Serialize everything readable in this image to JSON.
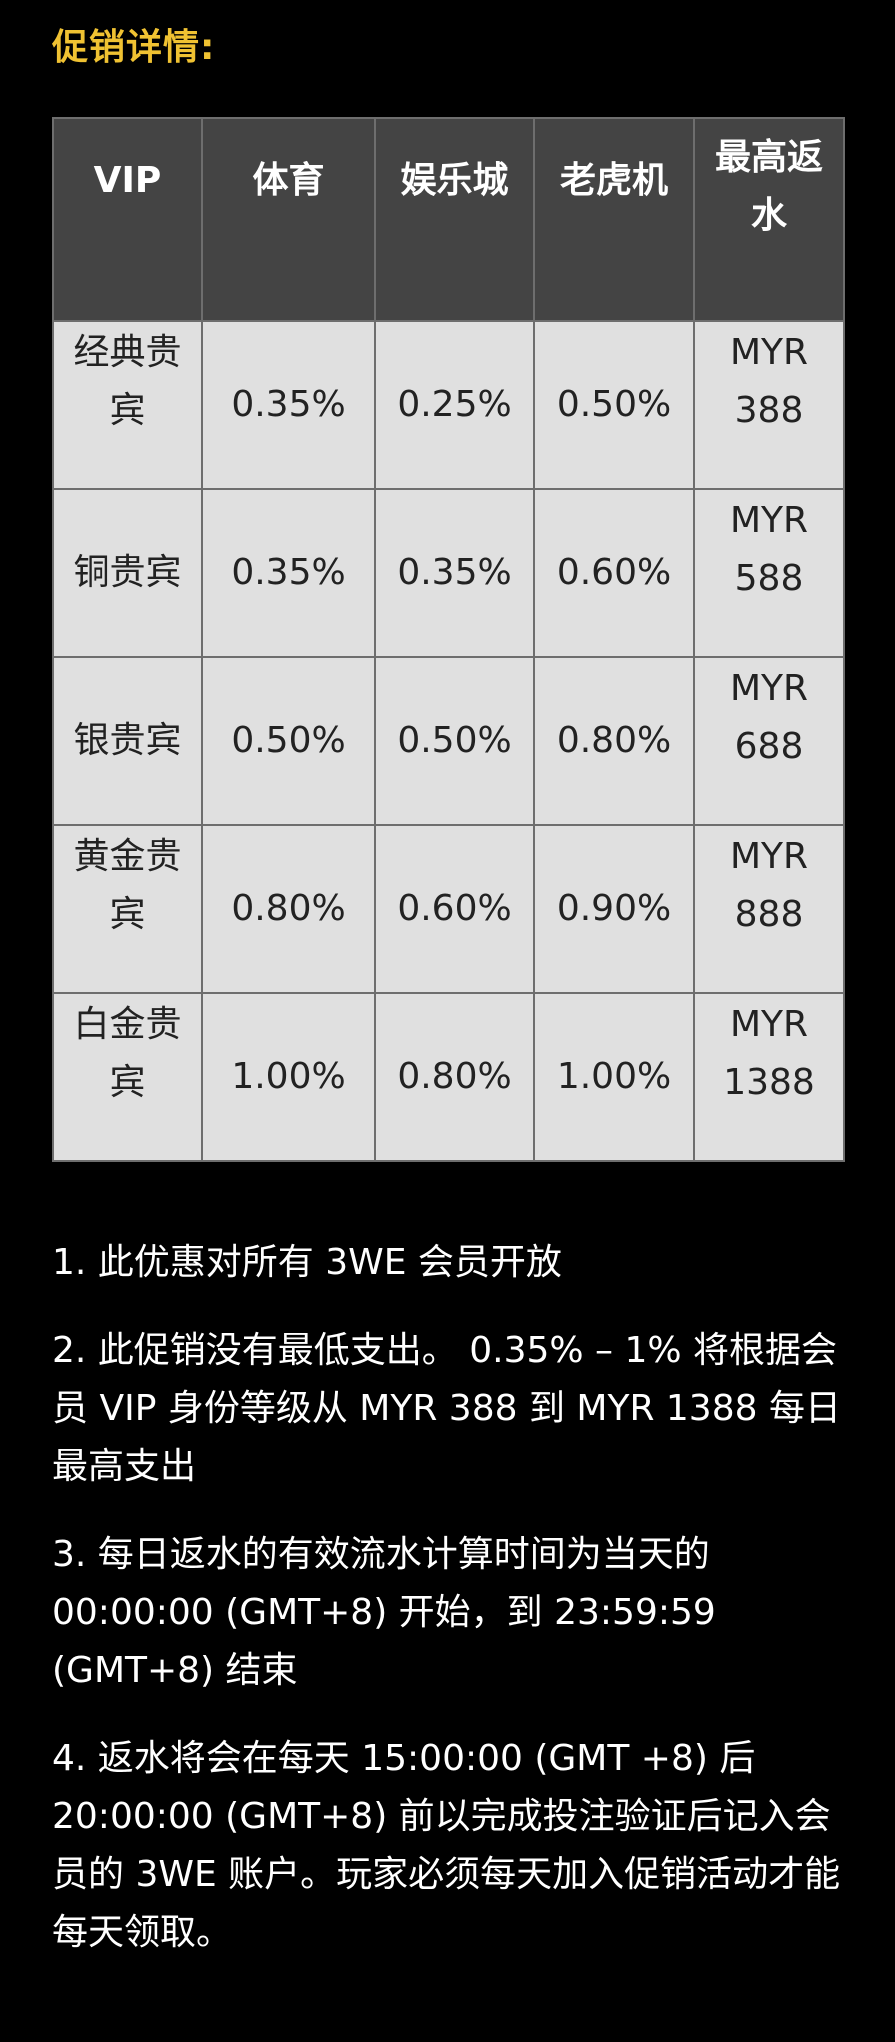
{
  "title": "促销详情:",
  "table": {
    "headers": [
      "VIP",
      "体育",
      "娱乐城",
      "老虎机",
      "最高返水"
    ],
    "rows": [
      [
        "经典贵宾",
        "0.35%",
        "0.25%",
        "0.50%",
        "MYR 388"
      ],
      [
        "铜贵宾",
        "0.35%",
        "0.35%",
        "0.60%",
        "MYR 588"
      ],
      [
        "银贵宾",
        "0.50%",
        "0.50%",
        "0.80%",
        "MYR 688"
      ],
      [
        "黄金贵宾",
        "0.80%",
        "0.60%",
        "0.90%",
        "MYR 888"
      ],
      [
        "白金贵宾",
        "1.00%",
        "0.80%",
        "1.00%",
        "MYR 1388"
      ]
    ]
  },
  "notes": [
    "1. 此优惠对所有 3WE 会员开放",
    "2. 此促销没有最低支出。 0.35% – 1% 将根据会员 VIP 身份等级从 MYR 388 到 MYR 1388 每日最高支出",
    "3. 每日返水的有效流水计算时间为当天的 00:00:00 (GMT+8) 开始，到 23:59:59 (GMT+8) 结束",
    "4. 返水将会在每天 15:00:00 (GMT +8) 后 20:00:00 (GMT+8) 前以完成投注验证后记入会员的 3WE 账户。玩家必须每天加入促销活动才能每天领取。"
  ],
  "colors": {
    "title": "#f0c232",
    "header_bg": "#444444",
    "cell_bg": "#e0e0e0"
  }
}
